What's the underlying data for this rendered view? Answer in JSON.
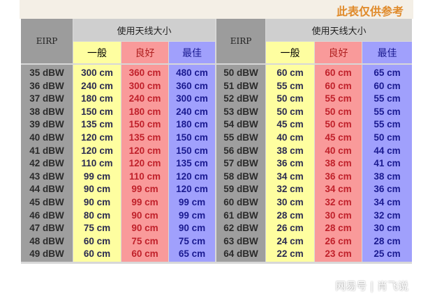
{
  "note": "此表仅供参考",
  "header": {
    "eirp": "EIRP",
    "antenna_size": "使用天线大小",
    "general": "一般",
    "good": "良好",
    "best": "最佳"
  },
  "colors": {
    "general": "#fefea0",
    "good": "#f99a9a",
    "best": "#a0a0fc",
    "eirp": "#9e9e9e"
  },
  "left": {
    "eirp": [
      "35 dBW",
      "36 dBW",
      "37 dBW",
      "38 dBW",
      "39 dBW",
      "40 dBW",
      "41 dBW",
      "42 dBW",
      "43 dBW",
      "44 dBW",
      "45 dBW",
      "46 dBW",
      "47 dBW",
      "48 dBW",
      "49 dBW"
    ],
    "general": [
      "300 cm",
      "240 cm",
      "180 cm",
      "150 cm",
      "135 cm",
      "120 cm",
      "120 cm",
      "110 cm",
      "99 cm",
      "90 cm",
      "90 cm",
      "80 cm",
      "75 cm",
      "60 cm",
      "60 cm"
    ],
    "good": [
      "360 cm",
      "300 cm",
      "240 cm",
      "180 cm",
      "150 cm",
      "135 cm",
      "120 cm",
      "120 cm",
      "110 cm",
      "99 cm",
      "99 cm",
      "90 cm",
      "90 cm",
      "75 cm",
      "60 cm"
    ],
    "best": [
      "480 cm",
      "360 cm",
      "300 cm",
      "240 cm",
      "180 cm",
      "150 cm",
      "150 cm",
      "135 cm",
      "120 cm",
      "120 cm",
      "99 cm",
      "99 cm",
      "90 cm",
      "75 cm",
      "65 cm"
    ]
  },
  "right": {
    "eirp": [
      "50 dBW",
      "51 dBW",
      "52 dBW",
      "53 dBW",
      "54 dBW",
      "55 dBW",
      "56 dBW",
      "57 dBW",
      "58 dBW",
      "59 dBW",
      "60 dBW",
      "61 dBW",
      "62 dBW",
      "63 dBW",
      "64 dBW"
    ],
    "general": [
      "60 cm",
      "55 cm",
      "50 cm",
      "50 cm",
      "45 cm",
      "40 cm",
      "38 cm",
      "36 cm",
      "34 cm",
      "32 cm",
      "30 cm",
      "28 cm",
      "26 cm",
      "24 cm",
      "22 cm"
    ],
    "good": [
      "60 cm",
      "60 cm",
      "55 cm",
      "50 cm",
      "50 cm",
      "45 cm",
      "40 cm",
      "38 cm",
      "36 cm",
      "34 cm",
      "32 cm",
      "30 cm",
      "28 cm",
      "26 cm",
      "23 cm"
    ],
    "best": [
      "65 cm",
      "60 cm",
      "55 cm",
      "55 cm",
      "55 cm",
      "50 cm",
      "44 cm",
      "41 cm",
      "38 cm",
      "36 cm",
      "34 cm",
      "32 cm",
      "30 cm",
      "28 cm",
      "25 cm"
    ]
  },
  "watermark": "网易号 | 肖飞说"
}
